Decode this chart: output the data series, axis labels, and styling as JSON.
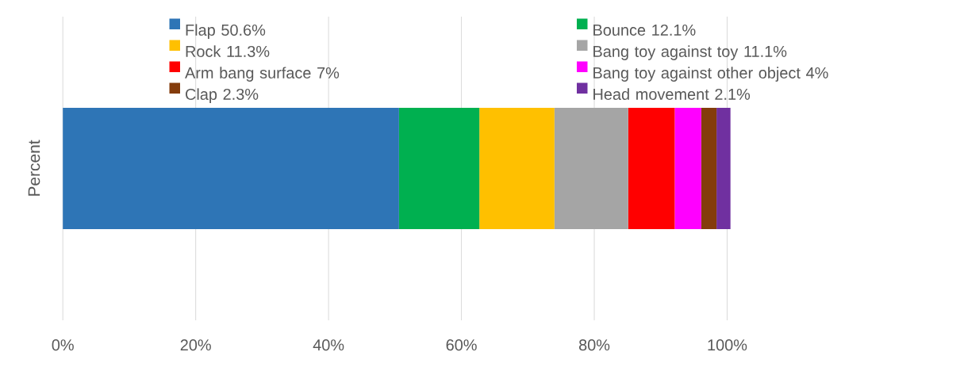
{
  "chart_data": {
    "type": "bar",
    "orientation": "horizontal",
    "stacked": true,
    "ylabel": "Percent",
    "categories": [
      null
    ],
    "series": [
      {
        "name": "Flap 50.6%",
        "color": "#2e75b6",
        "values": [
          50.6
        ]
      },
      {
        "name": "Bounce 12.1%",
        "color": "#00b050",
        "values": [
          12.1
        ]
      },
      {
        "name": "Rock 11.3%",
        "color": "#ffc000",
        "values": [
          11.3
        ]
      },
      {
        "name": "Bang toy against toy 11.1%",
        "color": "#a5a5a5",
        "values": [
          11.1
        ]
      },
      {
        "name": "Arm bang surface 7%",
        "color": "#ff0000",
        "values": [
          7
        ]
      },
      {
        "name": "Bang toy against other object 4%",
        "color": "#ff00ff",
        "values": [
          4
        ]
      },
      {
        "name": "Clap 2.3%",
        "color": "#843c0c",
        "values": [
          2.3
        ]
      },
      {
        "name": "Head movement 2.1%",
        "color": "#7030a0",
        "values": [
          2.1
        ]
      }
    ],
    "xlim": [
      0,
      100.5
    ],
    "xticks": [
      {
        "value": 0,
        "label": "0%"
      },
      {
        "value": 20,
        "label": "20%"
      },
      {
        "value": 40,
        "label": "40%"
      },
      {
        "value": 60,
        "label": "60%"
      },
      {
        "value": 80,
        "label": "80%"
      },
      {
        "value": 100,
        "label": "100%"
      }
    ],
    "grid": "x",
    "legend": "top"
  }
}
